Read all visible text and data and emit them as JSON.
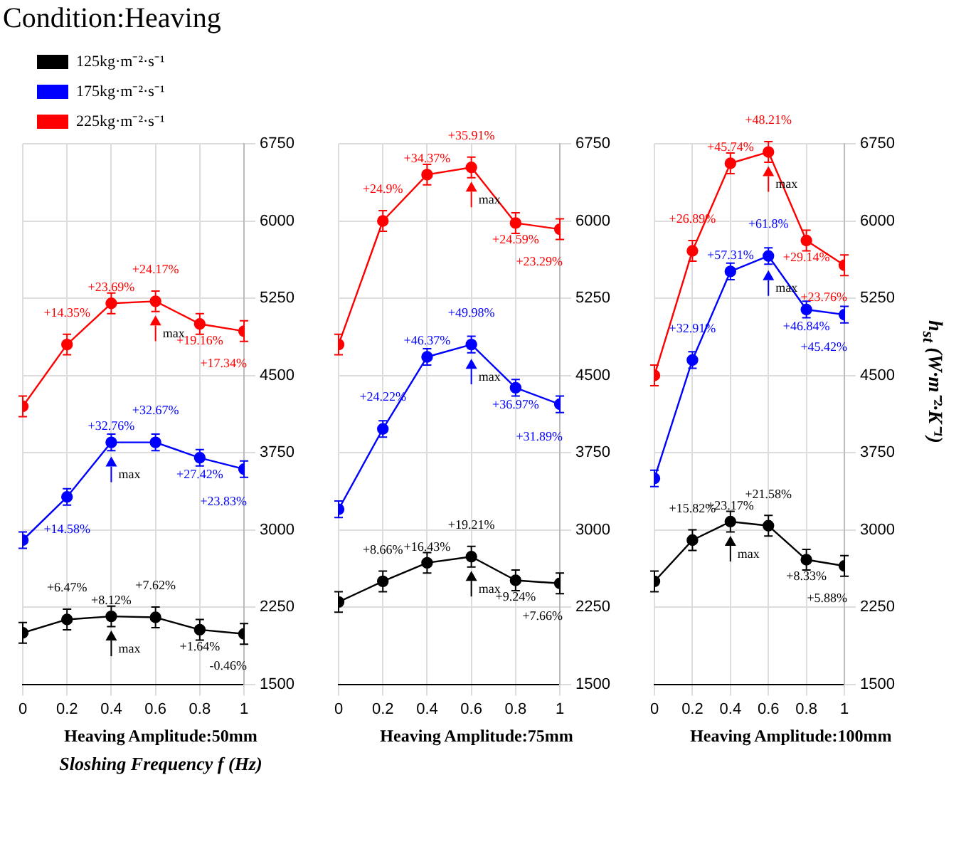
{
  "chart_data": [
    {
      "type": "line",
      "title": "Condition:Heaving",
      "subtitle": "Heaving Amplitude:50mm",
      "xlabel": "Sloshing Frequency f (Hz)",
      "x": [
        0,
        0.2,
        0.4,
        0.6,
        0.8,
        1.0
      ],
      "xlim": [
        0,
        1
      ],
      "xticks": [
        0,
        0.2,
        0.4,
        0.6,
        0.8,
        1.0
      ],
      "ylim": [
        1500,
        6750
      ],
      "yticks": [
        1500,
        2250,
        3000,
        3750,
        4500,
        5250,
        6000,
        6750
      ],
      "grid": true,
      "legend": "top left",
      "marker": "circle",
      "series": [
        {
          "name": "125kg·m⁻²·s⁻¹",
          "color": "#000000",
          "values": [
            2000,
            2130,
            2160,
            2150,
            2030,
            1990
          ],
          "errors": [
            100,
            100,
            100,
            100,
            100,
            100
          ]
        },
        {
          "name": "175kg·m⁻²·s⁻¹",
          "color": "#0000ff",
          "values": [
            2900,
            3320,
            3850,
            3850,
            3700,
            3590
          ],
          "errors": [
            80,
            80,
            80,
            80,
            80,
            80
          ]
        },
        {
          "name": "225kg·m⁻²·s⁻¹",
          "color": "#ff0000",
          "values": [
            4200,
            4800,
            5200,
            5220,
            5000,
            4930
          ],
          "errors": [
            100,
            100,
            100,
            100,
            100,
            100
          ]
        }
      ],
      "annotations": [
        {
          "text": "+6.47%",
          "x": 0.2,
          "y": 2130
        },
        {
          "text": "+8.12%",
          "x": 0.4,
          "y": 2160
        },
        {
          "text": "+7.62%",
          "x": 0.6,
          "y": 2150
        },
        {
          "text": "+1.64%",
          "x": 0.8,
          "y": 2030
        },
        {
          "text": "-0.46%",
          "x": 1.0,
          "y": 1990
        },
        {
          "text": "+14.58%",
          "x": 0.2,
          "y": 3320
        },
        {
          "text": "+32.76%",
          "x": 0.4,
          "y": 3850
        },
        {
          "text": "+32.67%",
          "x": 0.6,
          "y": 3850
        },
        {
          "text": "+27.42%",
          "x": 0.8,
          "y": 3700
        },
        {
          "text": "+23.83%",
          "x": 1.0,
          "y": 3590
        },
        {
          "text": "+14.35%",
          "x": 0.2,
          "y": 4800
        },
        {
          "text": "+23.69%",
          "x": 0.4,
          "y": 5200
        },
        {
          "text": "+24.17%",
          "x": 0.6,
          "y": 5220
        },
        {
          "text": "+19.16%",
          "x": 0.8,
          "y": 5000
        },
        {
          "text": "+17.34%",
          "x": 1.0,
          "y": 4930
        },
        {
          "text": "max",
          "x": 0.4,
          "y": 2160
        },
        {
          "text": "max",
          "x": 0.4,
          "y": 3850
        },
        {
          "text": "max",
          "x": 0.6,
          "y": 5220
        }
      ]
    },
    {
      "type": "line",
      "subtitle": "Heaving Amplitude:75mm",
      "x": [
        0,
        0.2,
        0.4,
        0.6,
        0.8,
        1.0
      ],
      "xlim": [
        0,
        1
      ],
      "xticks": [
        0,
        0.2,
        0.4,
        0.6,
        0.8,
        1.0
      ],
      "ylim": [
        1500,
        6750
      ],
      "yticks": [
        1500,
        2250,
        3000,
        3750,
        4500,
        5250,
        6000,
        6750
      ],
      "grid": true,
      "marker": "circle",
      "series": [
        {
          "color": "#000000",
          "values": [
            2300,
            2500,
            2680,
            2740,
            2510,
            2480
          ],
          "errors": [
            100,
            100,
            100,
            100,
            100,
            100
          ]
        },
        {
          "color": "#0000ff",
          "values": [
            3200,
            3980,
            4680,
            4800,
            4380,
            4220
          ],
          "errors": [
            80,
            80,
            80,
            80,
            80,
            80
          ]
        },
        {
          "color": "#ff0000",
          "values": [
            4800,
            6000,
            6450,
            6520,
            5980,
            5920
          ],
          "errors": [
            100,
            100,
            100,
            100,
            100,
            100
          ]
        }
      ],
      "annotations": [
        {
          "text": "+8.66%",
          "x": 0.2,
          "y": 2500
        },
        {
          "text": "+16.43%",
          "x": 0.4,
          "y": 2680
        },
        {
          "text": "+19.21%",
          "x": 0.6,
          "y": 2740
        },
        {
          "text": "+9.24%",
          "x": 0.8,
          "y": 2510
        },
        {
          "text": "+7.66%",
          "x": 1.0,
          "y": 2480
        },
        {
          "text": "+24.22%",
          "x": 0.2,
          "y": 3980
        },
        {
          "text": "+46.37%",
          "x": 0.4,
          "y": 4680
        },
        {
          "text": "+49.98%",
          "x": 0.6,
          "y": 4800
        },
        {
          "text": "+36.97%",
          "x": 0.8,
          "y": 4380
        },
        {
          "text": "+31.89%",
          "x": 1.0,
          "y": 4220
        },
        {
          "text": "+24.9%",
          "x": 0.2,
          "y": 6000
        },
        {
          "text": "+34.37%",
          "x": 0.4,
          "y": 6450
        },
        {
          "text": "+35.91%",
          "x": 0.6,
          "y": 6520
        },
        {
          "text": "+24.59%",
          "x": 0.8,
          "y": 5980
        },
        {
          "text": "+23.29%",
          "x": 1.0,
          "y": 5920
        },
        {
          "text": "max",
          "x": 0.6,
          "y": 2740
        },
        {
          "text": "max",
          "x": 0.6,
          "y": 4800
        },
        {
          "text": "max",
          "x": 0.6,
          "y": 6520
        }
      ]
    },
    {
      "type": "line",
      "subtitle": "Heaving Amplitude:100mm",
      "ylabel": "h$_{st}$ (W·m⁻²·K⁻¹)",
      "x": [
        0,
        0.2,
        0.4,
        0.6,
        0.8,
        1.0
      ],
      "xlim": [
        0,
        1
      ],
      "xticks": [
        0,
        0.2,
        0.4,
        0.6,
        0.8,
        1.0
      ],
      "ylim": [
        1500,
        6750
      ],
      "yticks": [
        1500,
        2250,
        3000,
        3750,
        4500,
        5250,
        6000,
        6750
      ],
      "grid": true,
      "marker": "circle",
      "series": [
        {
          "color": "#000000",
          "values": [
            2500,
            2900,
            3080,
            3040,
            2710,
            2650
          ],
          "errors": [
            100,
            100,
            100,
            100,
            100,
            100
          ]
        },
        {
          "color": "#0000ff",
          "values": [
            3500,
            4650,
            5510,
            5660,
            5140,
            5090
          ],
          "errors": [
            80,
            80,
            80,
            80,
            80,
            80
          ]
        },
        {
          "color": "#ff0000",
          "values": [
            4500,
            5710,
            6560,
            6670,
            5810,
            5570
          ],
          "errors": [
            100,
            100,
            100,
            100,
            100,
            100
          ]
        }
      ],
      "annotations": [
        {
          "text": "+15.82%",
          "x": 0.2,
          "y": 2900
        },
        {
          "text": "+23.17%",
          "x": 0.4,
          "y": 3080
        },
        {
          "text": "+21.58%",
          "x": 0.6,
          "y": 3040
        },
        {
          "text": "+8.33%",
          "x": 0.8,
          "y": 2710
        },
        {
          "text": "+5.88%",
          "x": 1.0,
          "y": 2650
        },
        {
          "text": "+32.91%",
          "x": 0.2,
          "y": 4650
        },
        {
          "text": "+57.31%",
          "x": 0.4,
          "y": 5510
        },
        {
          "text": "+61.8%",
          "x": 0.6,
          "y": 5660
        },
        {
          "text": "+46.84%",
          "x": 0.8,
          "y": 5140
        },
        {
          "text": "+45.42%",
          "x": 1.0,
          "y": 5090
        },
        {
          "text": "+26.89%",
          "x": 0.2,
          "y": 5710
        },
        {
          "text": "+45.74%",
          "x": 0.4,
          "y": 6560
        },
        {
          "text": "+48.21%",
          "x": 0.6,
          "y": 6670
        },
        {
          "text": "+29.14%",
          "x": 0.8,
          "y": 5810
        },
        {
          "text": "+23.76%",
          "x": 1.0,
          "y": 5570
        },
        {
          "text": "max",
          "x": 0.4,
          "y": 3080
        },
        {
          "text": "max",
          "x": 0.6,
          "y": 5660
        },
        {
          "text": "max",
          "x": 0.6,
          "y": 6670
        }
      ]
    }
  ]
}
